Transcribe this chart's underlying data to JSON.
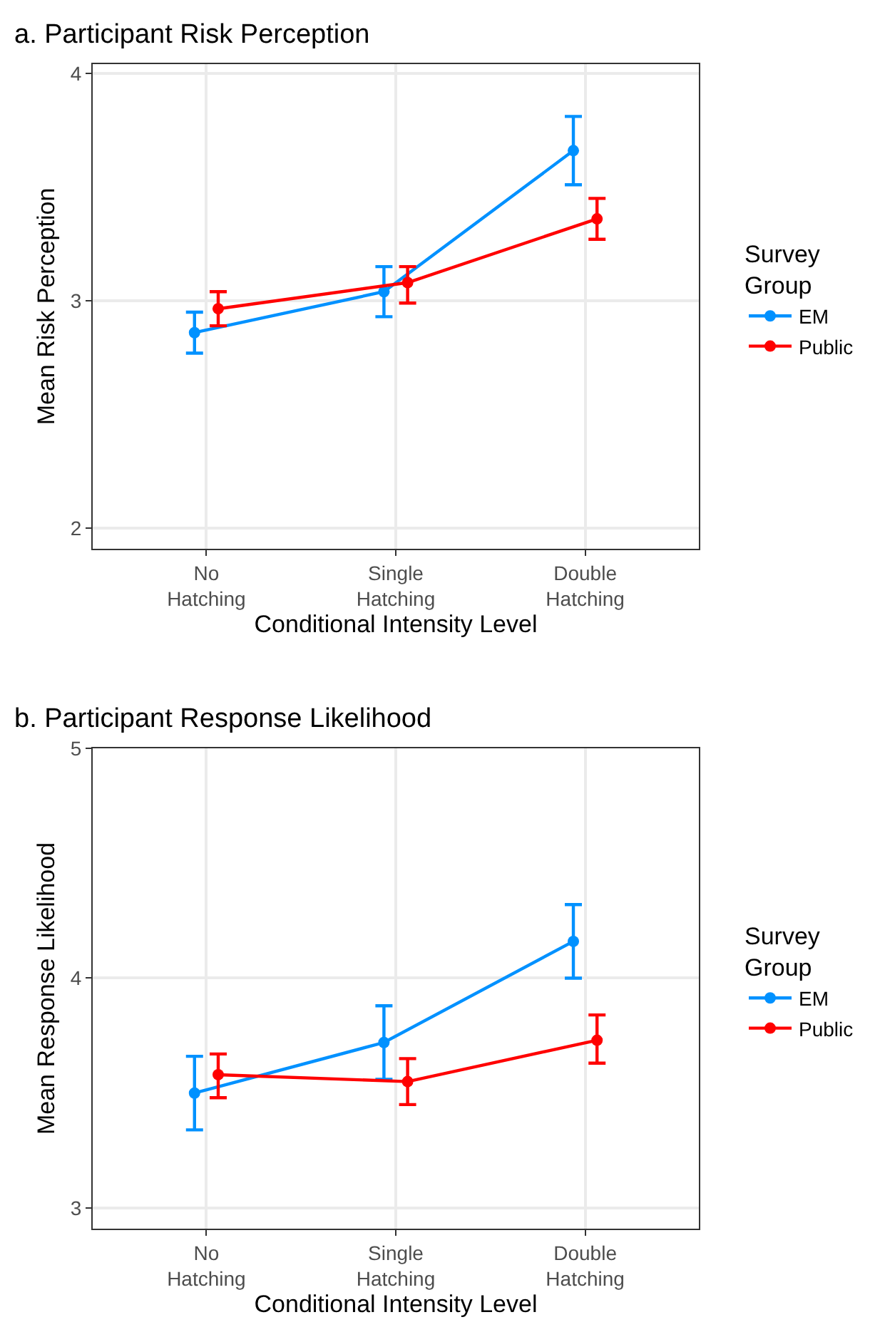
{
  "chart_data": [
    {
      "type": "line",
      "title": "a. Participant Risk Perception",
      "xlabel": "Conditional Intensity Level",
      "ylabel": "Mean Risk Perception",
      "legend_title": "Survey\nGroup",
      "legend": "right",
      "grid": true,
      "marker": "circle",
      "line_style": "solid",
      "categories": [
        "No\nHatching",
        "Single\nHatching",
        "Double\nHatching"
      ],
      "ylim": [
        1.91,
        4.04
      ],
      "yticks": [
        2,
        3,
        4
      ],
      "series": [
        {
          "name": "EM",
          "color": "#0091ff",
          "values": [
            2.86,
            3.04,
            3.66
          ],
          "errors": [
            [
              2.77,
              2.95
            ],
            [
              2.93,
              3.15
            ],
            [
              3.51,
              3.81
            ]
          ]
        },
        {
          "name": "Public",
          "color": "#ff0000",
          "values": [
            2.965,
            3.08,
            3.36
          ],
          "errors": [
            [
              2.89,
              3.04
            ],
            [
              2.99,
              3.15
            ],
            [
              3.27,
              3.45
            ]
          ]
        }
      ]
    },
    {
      "type": "line",
      "title": "b. Participant Response Likelihood",
      "xlabel": "Conditional Intensity Level",
      "ylabel": "Mean Response Likelihood",
      "legend_title": "Survey\nGroup",
      "legend": "right",
      "grid": true,
      "marker": "circle",
      "line_style": "solid",
      "categories": [
        "No\nHatching",
        "Single\nHatching",
        "Double\nHatching"
      ],
      "ylim": [
        2.91,
        5.0
      ],
      "yticks": [
        3,
        4,
        5
      ],
      "series": [
        {
          "name": "EM",
          "color": "#0091ff",
          "values": [
            3.5,
            3.72,
            4.16
          ],
          "errors": [
            [
              3.34,
              3.66
            ],
            [
              3.56,
              3.88
            ],
            [
              4.0,
              4.32
            ]
          ]
        },
        {
          "name": "Public",
          "color": "#ff0000",
          "values": [
            3.58,
            3.55,
            3.73
          ],
          "errors": [
            [
              3.48,
              3.67
            ],
            [
              3.45,
              3.65
            ],
            [
              3.63,
              3.84
            ]
          ]
        }
      ]
    }
  ]
}
